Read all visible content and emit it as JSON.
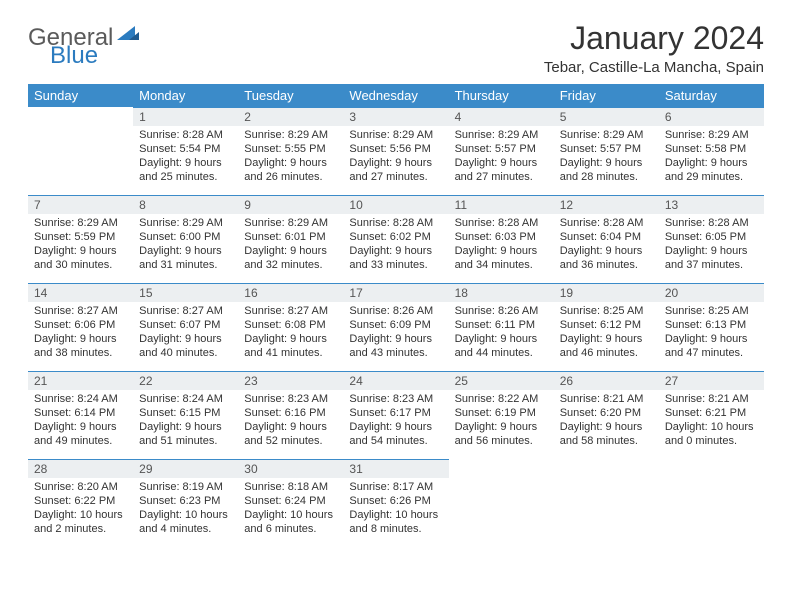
{
  "brand": {
    "word1": "General",
    "word2": "Blue"
  },
  "title": "January 2024",
  "location": "Tebar, Castille-La Mancha, Spain",
  "colors": {
    "header_bg": "#3b8bc9",
    "header_text": "#ffffff",
    "daynum_bg": "#eceff1",
    "daynum_border": "#3b8bc9",
    "text": "#333333",
    "background": "#ffffff",
    "logo_gray": "#5a5a5a",
    "logo_blue": "#2b7bbf"
  },
  "typography": {
    "title_fontsize": 32,
    "location_fontsize": 15,
    "header_fontsize": 13,
    "daynum_fontsize": 12,
    "body_fontsize": 11
  },
  "weekdays": [
    "Sunday",
    "Monday",
    "Tuesday",
    "Wednesday",
    "Thursday",
    "Friday",
    "Saturday"
  ],
  "weeks": [
    [
      null,
      {
        "n": "1",
        "sunrise": "Sunrise: 8:28 AM",
        "sunset": "Sunset: 5:54 PM",
        "day1": "Daylight: 9 hours",
        "day2": "and 25 minutes."
      },
      {
        "n": "2",
        "sunrise": "Sunrise: 8:29 AM",
        "sunset": "Sunset: 5:55 PM",
        "day1": "Daylight: 9 hours",
        "day2": "and 26 minutes."
      },
      {
        "n": "3",
        "sunrise": "Sunrise: 8:29 AM",
        "sunset": "Sunset: 5:56 PM",
        "day1": "Daylight: 9 hours",
        "day2": "and 27 minutes."
      },
      {
        "n": "4",
        "sunrise": "Sunrise: 8:29 AM",
        "sunset": "Sunset: 5:57 PM",
        "day1": "Daylight: 9 hours",
        "day2": "and 27 minutes."
      },
      {
        "n": "5",
        "sunrise": "Sunrise: 8:29 AM",
        "sunset": "Sunset: 5:57 PM",
        "day1": "Daylight: 9 hours",
        "day2": "and 28 minutes."
      },
      {
        "n": "6",
        "sunrise": "Sunrise: 8:29 AM",
        "sunset": "Sunset: 5:58 PM",
        "day1": "Daylight: 9 hours",
        "day2": "and 29 minutes."
      }
    ],
    [
      {
        "n": "7",
        "sunrise": "Sunrise: 8:29 AM",
        "sunset": "Sunset: 5:59 PM",
        "day1": "Daylight: 9 hours",
        "day2": "and 30 minutes."
      },
      {
        "n": "8",
        "sunrise": "Sunrise: 8:29 AM",
        "sunset": "Sunset: 6:00 PM",
        "day1": "Daylight: 9 hours",
        "day2": "and 31 minutes."
      },
      {
        "n": "9",
        "sunrise": "Sunrise: 8:29 AM",
        "sunset": "Sunset: 6:01 PM",
        "day1": "Daylight: 9 hours",
        "day2": "and 32 minutes."
      },
      {
        "n": "10",
        "sunrise": "Sunrise: 8:28 AM",
        "sunset": "Sunset: 6:02 PM",
        "day1": "Daylight: 9 hours",
        "day2": "and 33 minutes."
      },
      {
        "n": "11",
        "sunrise": "Sunrise: 8:28 AM",
        "sunset": "Sunset: 6:03 PM",
        "day1": "Daylight: 9 hours",
        "day2": "and 34 minutes."
      },
      {
        "n": "12",
        "sunrise": "Sunrise: 8:28 AM",
        "sunset": "Sunset: 6:04 PM",
        "day1": "Daylight: 9 hours",
        "day2": "and 36 minutes."
      },
      {
        "n": "13",
        "sunrise": "Sunrise: 8:28 AM",
        "sunset": "Sunset: 6:05 PM",
        "day1": "Daylight: 9 hours",
        "day2": "and 37 minutes."
      }
    ],
    [
      {
        "n": "14",
        "sunrise": "Sunrise: 8:27 AM",
        "sunset": "Sunset: 6:06 PM",
        "day1": "Daylight: 9 hours",
        "day2": "and 38 minutes."
      },
      {
        "n": "15",
        "sunrise": "Sunrise: 8:27 AM",
        "sunset": "Sunset: 6:07 PM",
        "day1": "Daylight: 9 hours",
        "day2": "and 40 minutes."
      },
      {
        "n": "16",
        "sunrise": "Sunrise: 8:27 AM",
        "sunset": "Sunset: 6:08 PM",
        "day1": "Daylight: 9 hours",
        "day2": "and 41 minutes."
      },
      {
        "n": "17",
        "sunrise": "Sunrise: 8:26 AM",
        "sunset": "Sunset: 6:09 PM",
        "day1": "Daylight: 9 hours",
        "day2": "and 43 minutes."
      },
      {
        "n": "18",
        "sunrise": "Sunrise: 8:26 AM",
        "sunset": "Sunset: 6:11 PM",
        "day1": "Daylight: 9 hours",
        "day2": "and 44 minutes."
      },
      {
        "n": "19",
        "sunrise": "Sunrise: 8:25 AM",
        "sunset": "Sunset: 6:12 PM",
        "day1": "Daylight: 9 hours",
        "day2": "and 46 minutes."
      },
      {
        "n": "20",
        "sunrise": "Sunrise: 8:25 AM",
        "sunset": "Sunset: 6:13 PM",
        "day1": "Daylight: 9 hours",
        "day2": "and 47 minutes."
      }
    ],
    [
      {
        "n": "21",
        "sunrise": "Sunrise: 8:24 AM",
        "sunset": "Sunset: 6:14 PM",
        "day1": "Daylight: 9 hours",
        "day2": "and 49 minutes."
      },
      {
        "n": "22",
        "sunrise": "Sunrise: 8:24 AM",
        "sunset": "Sunset: 6:15 PM",
        "day1": "Daylight: 9 hours",
        "day2": "and 51 minutes."
      },
      {
        "n": "23",
        "sunrise": "Sunrise: 8:23 AM",
        "sunset": "Sunset: 6:16 PM",
        "day1": "Daylight: 9 hours",
        "day2": "and 52 minutes."
      },
      {
        "n": "24",
        "sunrise": "Sunrise: 8:23 AM",
        "sunset": "Sunset: 6:17 PM",
        "day1": "Daylight: 9 hours",
        "day2": "and 54 minutes."
      },
      {
        "n": "25",
        "sunrise": "Sunrise: 8:22 AM",
        "sunset": "Sunset: 6:19 PM",
        "day1": "Daylight: 9 hours",
        "day2": "and 56 minutes."
      },
      {
        "n": "26",
        "sunrise": "Sunrise: 8:21 AM",
        "sunset": "Sunset: 6:20 PM",
        "day1": "Daylight: 9 hours",
        "day2": "and 58 minutes."
      },
      {
        "n": "27",
        "sunrise": "Sunrise: 8:21 AM",
        "sunset": "Sunset: 6:21 PM",
        "day1": "Daylight: 10 hours",
        "day2": "and 0 minutes."
      }
    ],
    [
      {
        "n": "28",
        "sunrise": "Sunrise: 8:20 AM",
        "sunset": "Sunset: 6:22 PM",
        "day1": "Daylight: 10 hours",
        "day2": "and 2 minutes."
      },
      {
        "n": "29",
        "sunrise": "Sunrise: 8:19 AM",
        "sunset": "Sunset: 6:23 PM",
        "day1": "Daylight: 10 hours",
        "day2": "and 4 minutes."
      },
      {
        "n": "30",
        "sunrise": "Sunrise: 8:18 AM",
        "sunset": "Sunset: 6:24 PM",
        "day1": "Daylight: 10 hours",
        "day2": "and 6 minutes."
      },
      {
        "n": "31",
        "sunrise": "Sunrise: 8:17 AM",
        "sunset": "Sunset: 6:26 PM",
        "day1": "Daylight: 10 hours",
        "day2": "and 8 minutes."
      },
      null,
      null,
      null
    ]
  ]
}
